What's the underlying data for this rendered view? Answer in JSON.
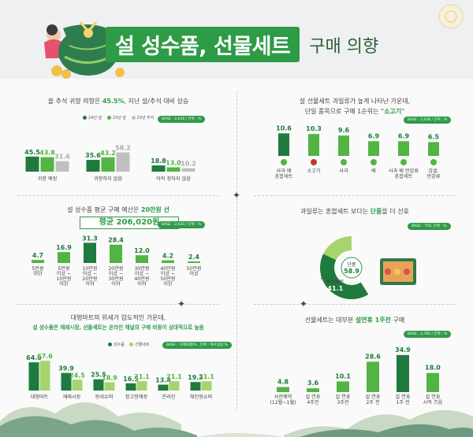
{
  "header": {
    "title_main": "설 성수품, 선물세트",
    "title_sub": "구매 의향"
  },
  "colors": {
    "dark": "#1f7a3f",
    "mid": "#52b443",
    "light": "#a7d46e",
    "gray": "#bfbfbf",
    "brand": "#2e9b47"
  },
  "s1": {
    "title_pre": "올 추석 귀향 의향은 ",
    "title_hl": "45.5%",
    "title_post": ", 지난 설/추석 대비 상승",
    "base": "BASE : 2,036 / 단위 : %",
    "legend": [
      "24년 설",
      "23년 설",
      "23년 추석"
    ]
  },
  "s2": {
    "title_pre": "설 성수품  평균 구매 예산은 ",
    "title_hl": "20만원 선",
    "avg_label": "평균 ",
    "avg_value": "206,020원",
    "base": "BASE : 2,030 / 단위 : %"
  },
  "s3": {
    "title_line1": "대형마트의 위세가 압도적인 가운데,",
    "title_line2": "설 성수품은 재래시장, 선물세트는 온라인 채널의 구매 비중이 상대적으로 높음",
    "base": "BASE : 구매처별/% , 단위 : 복수응답 %",
    "legend": [
      "성수품",
      "선물세트"
    ]
  },
  "s4": {
    "title_line1": "설 선물세트 과일류가 높게 나타난 가운데,",
    "title_line2_pre": "단일 품목으로 구매 1순위는 ",
    "title_line2_hl": "\"소고기\"",
    "base": "BASE : 2,036 / 단위 : %"
  },
  "s5": {
    "title_pre": "과일류는 혼합세트 보다는 ",
    "title_hl": "단품",
    "title_post": "을 더 선호",
    "base": "BASE : 750, 단위 : %"
  },
  "s6": {
    "title_pre": "선물세트는 대부분 ",
    "title_hl": "설연휴 1주전",
    "title_post": " 구매",
    "base": "BASE : 2,784 / 단위 : %"
  },
  "chart_data": [
    {
      "type": "bar",
      "title": "올 추석 귀향 의향은 45.5%, 지난 설/추석 대비 상승",
      "categories": [
        "귀향 예정",
        "귀향하지 않음",
        "아직 정하지 않음"
      ],
      "series": [
        {
          "name": "24년 설",
          "values": [
            45.5,
            35.6,
            18.8
          ]
        },
        {
          "name": "23년 설",
          "values": [
            43.8,
            43.2,
            13.0
          ]
        },
        {
          "name": "23년 추석",
          "values": [
            31.6,
            58.2,
            10.2
          ]
        }
      ]
    },
    {
      "type": "bar",
      "title": "설 성수품  평균 구매 예산은 20만원 선",
      "categories": [
        "5만원\n미만",
        "5만원\n이상 ~\n10만원\n미만",
        "10만원\n이상 ~\n20만원\n이하",
        "20만원\n이상 ~\n30만원\n이하",
        "30만원\n이상 ~\n40만원\n이하",
        "40만원\n이상 ~\n50만원\n이만",
        "50만원\n이상"
      ],
      "values": [
        4.7,
        16.9,
        31.3,
        28.4,
        12.0,
        4.2,
        2.4
      ]
    },
    {
      "type": "bar",
      "title": "대형마트의 위세가 압도적인 가운데",
      "categories": [
        "대형마트",
        "재래시장",
        "동네슈퍼",
        "창고형매장",
        "온라인",
        "체인형슈퍼"
      ],
      "series": [
        {
          "name": "성수품",
          "values": [
            64.0,
            39.9,
            25.5,
            16.5,
            13.4,
            19.3
          ]
        },
        {
          "name": "선물세트",
          "values": [
            67.6,
            24.5,
            18.9,
            21.1,
            21.1,
            21.1
          ]
        }
      ]
    },
    {
      "type": "bar",
      "title": "설 선물세트 과일류가 높게 나타난 가운데",
      "categories": [
        "사과 배\n혼합세트",
        "소고기",
        "사과",
        "배",
        "사과 배 만감류\n혼합세트",
        "감귤,\n만감류"
      ],
      "values": [
        10.6,
        10.3,
        9.6,
        6.9,
        6.9,
        6.5
      ]
    },
    {
      "type": "pie",
      "title": "과일류는 혼합세트 보다는 단품을 더 선호",
      "categories": [
        "단품",
        "혼합세트"
      ],
      "values": [
        58.9,
        41.1
      ]
    },
    {
      "type": "bar",
      "title": "선물세트는 대부분 설연휴 1주전 구매",
      "categories": [
        "사전예약\n(12월~1월)",
        "설 연휴\n4주전",
        "설 연휴\n3주전",
        "설 연휴\n2주 전",
        "설 연휴\n1주 전",
        "설 연휴\n시작 즈음"
      ],
      "values": [
        4.8,
        3.6,
        10.1,
        28.6,
        34.9,
        18.0
      ]
    }
  ]
}
